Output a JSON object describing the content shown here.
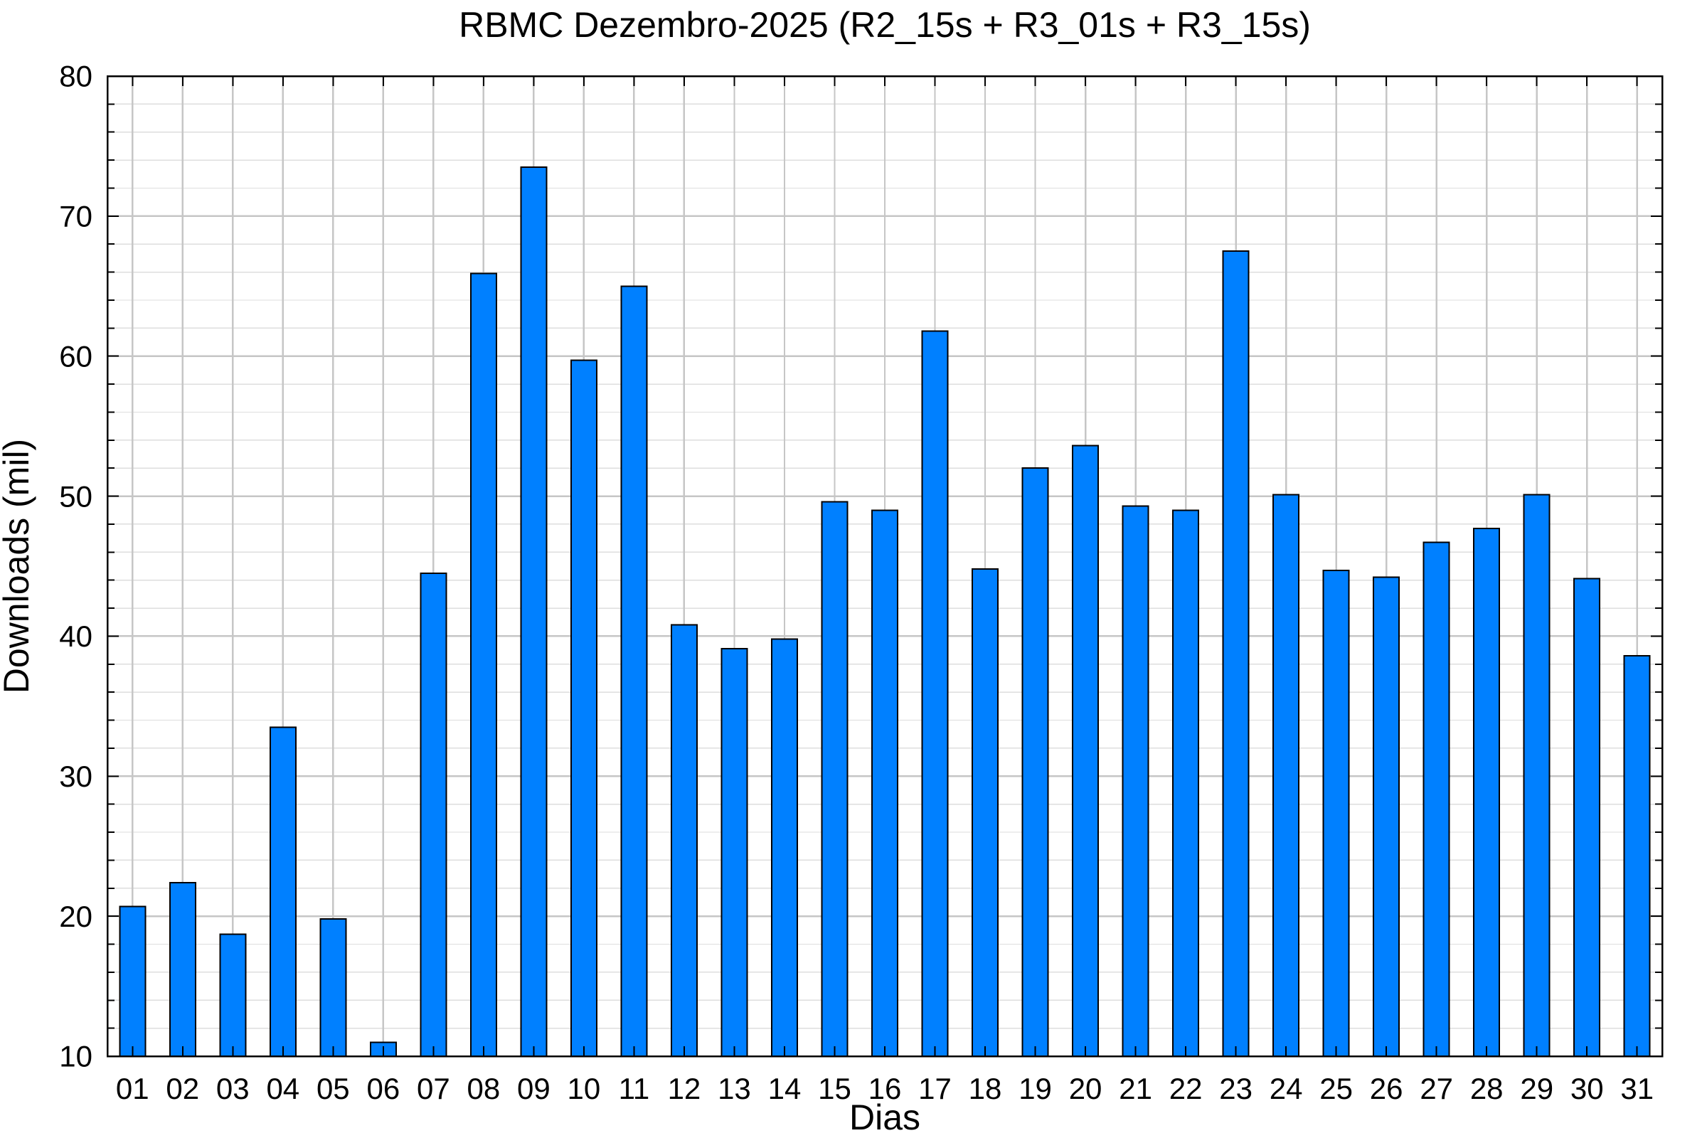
{
  "chart_data": {
    "type": "bar",
    "title": "RBMC Dezembro-2025 (R2_15s + R3_01s + R3_15s)",
    "xlabel": "Dias",
    "ylabel": "Downloads (mil)",
    "categories": [
      "01",
      "02",
      "03",
      "04",
      "05",
      "06",
      "07",
      "08",
      "09",
      "10",
      "11",
      "12",
      "13",
      "14",
      "15",
      "16",
      "17",
      "18",
      "19",
      "20",
      "21",
      "22",
      "23",
      "24",
      "25",
      "26",
      "27",
      "28",
      "29",
      "30",
      "31"
    ],
    "values": [
      20.7,
      22.4,
      18.7,
      33.5,
      19.8,
      11.0,
      44.5,
      65.9,
      73.5,
      59.7,
      65.0,
      40.8,
      39.1,
      39.8,
      49.6,
      49.0,
      61.8,
      44.8,
      52.0,
      53.6,
      49.3,
      49.0,
      67.5,
      50.1,
      44.7,
      44.2,
      46.7,
      47.7,
      50.1,
      44.1,
      38.6
    ],
    "ylim": [
      10,
      80
    ],
    "y_major_ticks": [
      10,
      20,
      30,
      40,
      50,
      60,
      70,
      80
    ],
    "y_minor_step": 2,
    "grid": "on",
    "legend": "none",
    "colors": {
      "bar_fill": "#0080ff",
      "bar_border": "#000000",
      "frame": "#000000",
      "grid_major": "#c6c6c6",
      "grid_minor": "#dedede",
      "text": "#000000",
      "background": "#ffffff"
    }
  }
}
